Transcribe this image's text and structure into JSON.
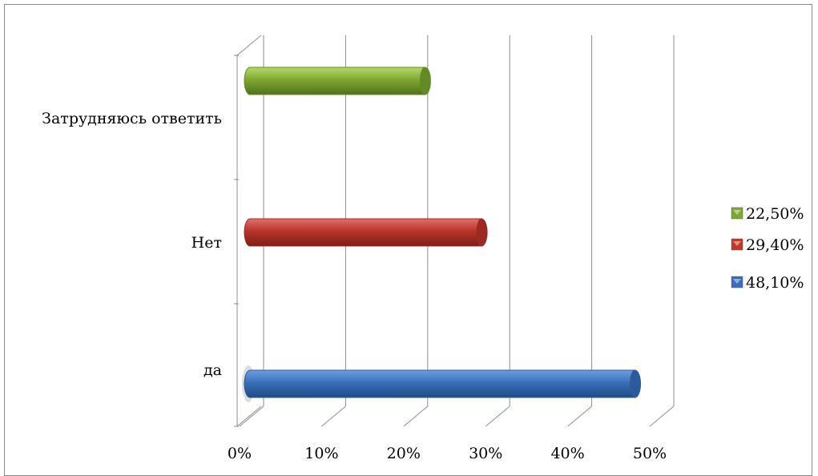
{
  "chart_data": {
    "type": "bar",
    "orientation": "horizontal",
    "style": "3d-cylinder",
    "categories": [
      "да",
      "Нет",
      "Затрудняюсь ответить"
    ],
    "values": [
      48.1,
      29.4,
      22.5
    ],
    "xticks": [
      "0%",
      "10%",
      "20%",
      "30%",
      "40%",
      "50%"
    ],
    "xlim": [
      0,
      50
    ],
    "grid": "vertical",
    "legend": {
      "position": "right",
      "entries": [
        {
          "label": "22,50%",
          "color": "#7fa832"
        },
        {
          "label": "29,40%",
          "color": "#c0392b"
        },
        {
          "label": "48,10%",
          "color": "#3a6fb8"
        }
      ]
    },
    "bar_colors": [
      "#3a6fb8",
      "#c0392b",
      "#7fa832"
    ]
  }
}
